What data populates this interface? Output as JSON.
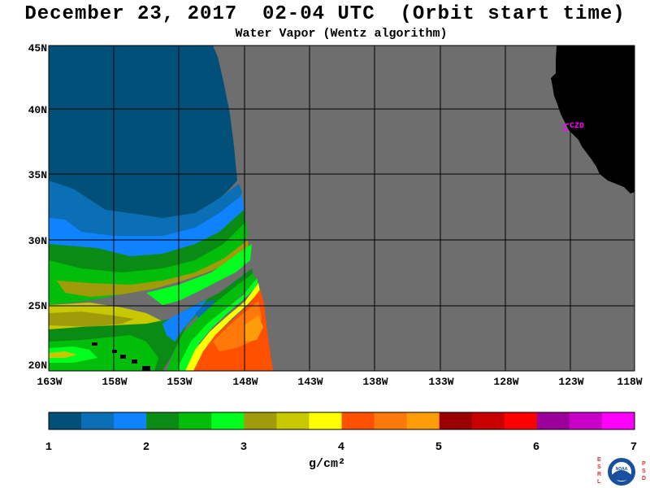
{
  "title": "December 23, 2017  02-04 UTC  (Orbit start time)",
  "subtitle": "Water Vapor (Wentz algorithm)",
  "latitude_labels": [
    "45N",
    "40N",
    "35N",
    "30N",
    "25N",
    "20N"
  ],
  "longitude_labels": [
    "163W",
    "158W",
    "153W",
    "148W",
    "143W",
    "138W",
    "133W",
    "128W",
    "123W",
    "118W"
  ],
  "station_label": "CZD",
  "colorbar": {
    "ticks": [
      "1",
      "2",
      "3",
      "4",
      "5",
      "6",
      "7"
    ],
    "units": "g/cm²",
    "colors": [
      "#00507a",
      "#0a6fb4",
      "#0f82ff",
      "#0a8c14",
      "#00be0a",
      "#00ff1e",
      "#a09b0a",
      "#c8c800",
      "#ffff00",
      "#ff5000",
      "#ff780a",
      "#ff9c0a",
      "#9b0000",
      "#c80000",
      "#ff0000",
      "#9b009b",
      "#c800c8",
      "#ff00ff"
    ]
  },
  "map_colors": {
    "no_data": "#6e6e6e",
    "land": "#000000",
    "grid": "#000000",
    "station": "#ff00ff"
  },
  "logo_letters": {
    "left": "ESRL",
    "right": "PSD",
    "center": "NOAA"
  }
}
